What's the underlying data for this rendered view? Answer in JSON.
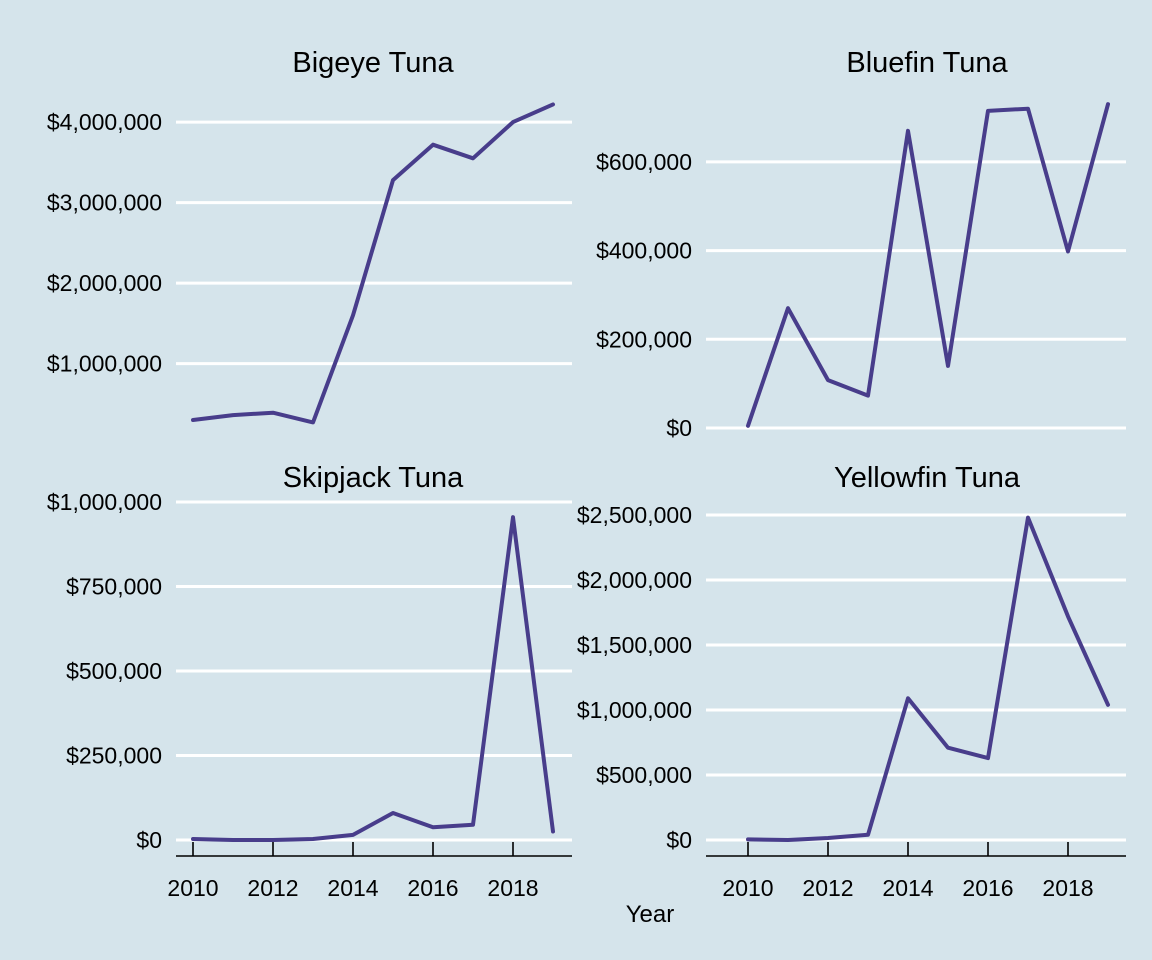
{
  "colors": {
    "background": "#d5e4eb",
    "grid": "#ffffff",
    "line": "#483d8b"
  },
  "chart_data": [
    {
      "type": "line",
      "title": "Bigeye Tuna",
      "xlabel": "",
      "ylabel": "",
      "x": [
        2010,
        2011,
        2012,
        2013,
        2014,
        2015,
        2016,
        2017,
        2018,
        2019
      ],
      "series": [
        {
          "values": [
            300000,
            360000,
            390000,
            270000,
            1600000,
            3280000,
            3720000,
            3550000,
            4000000,
            4220000
          ]
        }
      ],
      "ylim": [
        200000,
        4250000
      ],
      "yticks": [
        1000000,
        2000000,
        3000000,
        4000000
      ],
      "ytick_labels": [
        "$1,000,000",
        "$2,000,000",
        "$3,000,000",
        "$4,000,000"
      ],
      "xticks": [],
      "xtick_labels": [],
      "grid": "horizontal"
    },
    {
      "type": "line",
      "title": "Bluefin Tuna",
      "xlabel": "",
      "ylabel": "",
      "x": [
        2010,
        2011,
        2012,
        2013,
        2014,
        2015,
        2016,
        2017,
        2018,
        2019
      ],
      "series": [
        {
          "values": [
            5000,
            270000,
            108000,
            73000,
            670000,
            140000,
            715000,
            720000,
            398000,
            730000
          ]
        }
      ],
      "ylim": [
        0,
        735000
      ],
      "yticks": [
        0,
        200000,
        400000,
        600000
      ],
      "ytick_labels": [
        "$0",
        "$200,000",
        "$400,000",
        "$600,000"
      ],
      "xticks": [],
      "xtick_labels": [],
      "grid": "horizontal"
    },
    {
      "type": "line",
      "title": "Skipjack Tuna",
      "xlabel": "",
      "ylabel": "",
      "x": [
        2010,
        2011,
        2012,
        2013,
        2014,
        2015,
        2016,
        2017,
        2018,
        2019
      ],
      "series": [
        {
          "values": [
            3000,
            0,
            0,
            3000,
            15000,
            80000,
            38000,
            45000,
            955000,
            25000
          ]
        }
      ],
      "ylim": [
        0,
        1000000
      ],
      "yticks": [
        0,
        250000,
        500000,
        750000,
        1000000
      ],
      "ytick_labels": [
        "$0",
        "$250,000",
        "$500,000",
        "$750,000",
        "$1,000,000"
      ],
      "xticks": [
        2010,
        2012,
        2014,
        2016,
        2018
      ],
      "xtick_labels": [
        "2010",
        "2012",
        "2014",
        "2016",
        "2018"
      ],
      "grid": "horizontal"
    },
    {
      "type": "line",
      "title": "Yellowfin Tuna",
      "xlabel": "",
      "ylabel": "",
      "x": [
        2010,
        2011,
        2012,
        2013,
        2014,
        2015,
        2016,
        2017,
        2018,
        2019
      ],
      "series": [
        {
          "values": [
            5000,
            0,
            15000,
            40000,
            1090000,
            710000,
            630000,
            2480000,
            1720000,
            1040000
          ]
        }
      ],
      "ylim": [
        0,
        2500000
      ],
      "yticks": [
        0,
        500000,
        1000000,
        1500000,
        2000000,
        2500000
      ],
      "ytick_labels": [
        "$0",
        "$500,000",
        "$1,000,000",
        "$1,500,000",
        "$2,000,000",
        "$2,500,000"
      ],
      "xticks": [
        2010,
        2012,
        2014,
        2016,
        2018
      ],
      "xtick_labels": [
        "2010",
        "2012",
        "2014",
        "2016",
        "2018"
      ],
      "grid": "horizontal"
    }
  ],
  "shared_xlabel": "Year"
}
